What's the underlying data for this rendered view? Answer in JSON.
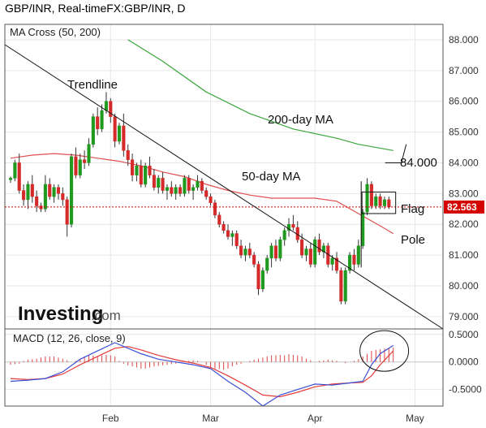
{
  "header": {
    "title": "GBP/INR, Real-timeFX:GBP/INR, D"
  },
  "chart_data": [
    {
      "type": "candlestick",
      "title": "GBP/INR, Real-timeFX:GBP/INR, D",
      "indicator_label": "MA Cross (50, 200)",
      "ylim": [
        78.6,
        88.5
      ],
      "y_ticks": [
        "88.000",
        "87.000",
        "86.000",
        "85.000",
        "84.000",
        "83.000",
        "82.000",
        "81.000",
        "80.000",
        "79.000"
      ],
      "x_ticks": [
        "Feb",
        "Mar",
        "Apr",
        "May"
      ],
      "last_price": "82.563",
      "colors": {
        "up": "#1f9a1f",
        "down": "#d42a2a",
        "ma50": "#e05050",
        "ma200": "#3aa63a",
        "last": "#d40000"
      },
      "candles": [
        [
          83.45,
          83.55,
          83.35,
          83.5
        ],
        [
          83.5,
          84.1,
          83.4,
          84.0
        ],
        [
          84.0,
          84.3,
          83.0,
          83.1
        ],
        [
          83.1,
          83.3,
          82.6,
          82.8
        ],
        [
          82.8,
          83.4,
          82.5,
          83.3
        ],
        [
          83.3,
          83.6,
          82.7,
          82.9
        ],
        [
          82.9,
          83.1,
          82.4,
          82.6
        ],
        [
          82.6,
          82.7,
          82.4,
          82.5
        ],
        [
          82.5,
          83.6,
          82.4,
          83.3
        ],
        [
          83.3,
          83.5,
          82.8,
          82.9
        ],
        [
          82.9,
          83.3,
          82.7,
          83.2
        ],
        [
          83.2,
          83.3,
          82.8,
          83.0
        ],
        [
          83.0,
          83.2,
          82.6,
          82.8
        ],
        [
          82.8,
          82.9,
          81.6,
          82.0
        ],
        [
          82.0,
          84.3,
          81.9,
          84.2
        ],
        [
          84.2,
          84.5,
          83.5,
          83.6
        ],
        [
          83.6,
          84.3,
          83.5,
          84.1
        ],
        [
          84.1,
          84.4,
          83.8,
          84.0
        ],
        [
          84.0,
          84.8,
          83.9,
          84.6
        ],
        [
          84.6,
          85.6,
          84.5,
          85.5
        ],
        [
          85.5,
          85.8,
          84.9,
          85.1
        ],
        [
          85.1,
          85.9,
          85.0,
          85.7
        ],
        [
          85.7,
          86.3,
          85.6,
          86.0
        ],
        [
          86.0,
          86.1,
          85.3,
          85.5
        ],
        [
          85.5,
          85.6,
          84.5,
          84.7
        ],
        [
          84.7,
          85.3,
          84.6,
          85.2
        ],
        [
          85.2,
          85.6,
          84.2,
          84.4
        ],
        [
          84.4,
          84.6,
          83.9,
          84.1
        ],
        [
          84.1,
          84.3,
          83.4,
          83.6
        ],
        [
          83.6,
          84.0,
          83.4,
          83.9
        ],
        [
          83.9,
          84.1,
          83.2,
          83.3
        ],
        [
          83.3,
          84.0,
          83.2,
          83.9
        ],
        [
          83.9,
          84.2,
          83.5,
          83.6
        ],
        [
          83.6,
          83.8,
          83.1,
          83.2
        ],
        [
          83.2,
          83.6,
          83.0,
          83.5
        ],
        [
          83.5,
          83.7,
          83.0,
          83.1
        ],
        [
          83.1,
          83.3,
          82.8,
          83.2
        ],
        [
          83.2,
          83.4,
          82.9,
          83.0
        ],
        [
          83.0,
          83.3,
          82.8,
          83.2
        ],
        [
          83.2,
          83.3,
          82.9,
          83.0
        ],
        [
          83.0,
          83.6,
          82.9,
          83.5
        ],
        [
          83.5,
          83.6,
          83.0,
          83.1
        ],
        [
          83.1,
          83.3,
          82.8,
          83.2
        ],
        [
          83.2,
          83.6,
          83.1,
          83.4
        ],
        [
          83.4,
          83.5,
          83.0,
          83.1
        ],
        [
          83.1,
          83.2,
          82.8,
          82.9
        ],
        [
          82.9,
          83.0,
          82.6,
          82.7
        ],
        [
          82.7,
          82.8,
          82.2,
          82.3
        ],
        [
          82.3,
          82.4,
          81.9,
          82.0
        ],
        [
          82.0,
          82.1,
          81.7,
          81.8
        ],
        [
          81.8,
          82.0,
          81.5,
          81.6
        ],
        [
          81.6,
          81.8,
          81.3,
          81.7
        ],
        [
          81.7,
          81.8,
          81.2,
          81.3
        ],
        [
          81.3,
          81.5,
          80.9,
          81.0
        ],
        [
          81.0,
          81.3,
          80.8,
          81.2
        ],
        [
          81.2,
          81.4,
          80.9,
          81.0
        ],
        [
          81.0,
          81.1,
          80.6,
          80.7
        ],
        [
          80.7,
          80.8,
          79.7,
          79.9
        ],
        [
          79.9,
          80.6,
          79.8,
          80.5
        ],
        [
          80.5,
          81.0,
          80.4,
          80.9
        ],
        [
          80.9,
          81.4,
          80.6,
          81.3
        ],
        [
          81.3,
          81.5,
          80.8,
          80.9
        ],
        [
          80.9,
          81.6,
          80.8,
          81.5
        ],
        [
          81.5,
          81.9,
          81.3,
          81.8
        ],
        [
          81.8,
          82.2,
          81.6,
          82.0
        ],
        [
          82.0,
          82.3,
          81.8,
          81.9
        ],
        [
          81.9,
          82.1,
          81.4,
          81.5
        ],
        [
          81.5,
          81.7,
          80.9,
          81.0
        ],
        [
          81.0,
          81.3,
          80.8,
          81.2
        ],
        [
          81.2,
          81.4,
          80.6,
          80.7
        ],
        [
          80.7,
          81.6,
          80.6,
          81.5
        ],
        [
          81.5,
          81.7,
          81.0,
          81.1
        ],
        [
          81.1,
          81.4,
          80.9,
          81.3
        ],
        [
          81.3,
          81.4,
          80.6,
          80.7
        ],
        [
          80.7,
          81.0,
          80.5,
          80.9
        ],
        [
          80.9,
          81.1,
          80.4,
          80.5
        ],
        [
          80.5,
          80.6,
          79.4,
          79.5
        ],
        [
          79.5,
          80.6,
          79.4,
          80.5
        ],
        [
          80.5,
          81.1,
          80.4,
          81.0
        ],
        [
          81.0,
          81.2,
          80.5,
          80.7
        ],
        [
          80.7,
          81.5,
          80.6,
          81.3
        ],
        [
          81.3,
          82.5,
          81.2,
          82.4
        ],
        [
          82.4,
          83.5,
          82.3,
          83.3
        ],
        [
          83.3,
          83.4,
          82.5,
          82.6
        ],
        [
          82.6,
          83.0,
          82.5,
          82.9
        ],
        [
          82.9,
          83.0,
          82.5,
          82.6
        ],
        [
          82.6,
          82.9,
          82.5,
          82.8
        ],
        [
          82.8,
          82.9,
          82.5,
          82.563
        ]
      ],
      "ma50": [
        [
          0,
          84.15
        ],
        [
          5,
          84.25
        ],
        [
          10,
          84.3
        ],
        [
          15,
          84.25
        ],
        [
          20,
          84.15
        ],
        [
          25,
          84.05
        ],
        [
          30,
          83.9
        ],
        [
          35,
          83.7
        ],
        [
          40,
          83.55
        ],
        [
          45,
          83.3
        ],
        [
          50,
          83.1
        ],
        [
          55,
          82.95
        ],
        [
          60,
          82.85
        ],
        [
          65,
          82.85
        ],
        [
          70,
          82.85
        ],
        [
          75,
          82.75
        ],
        [
          80,
          82.35
        ],
        [
          85,
          81.95
        ],
        [
          88,
          81.7
        ]
      ],
      "ma200": [
        [
          27,
          88.0
        ],
        [
          35,
          87.3
        ],
        [
          45,
          86.3
        ],
        [
          55,
          85.6
        ],
        [
          65,
          85.1
        ],
        [
          75,
          84.8
        ],
        [
          80,
          84.6
        ],
        [
          88,
          84.4
        ]
      ],
      "annotations": {
        "trendline": "Trendline",
        "ma200": "200-day MA",
        "ma50": "50-day MA",
        "target": "84.000",
        "flag": "Flag",
        "pole": "Pole"
      }
    },
    {
      "type": "line",
      "title": "MACD (12, 26, close, 9)",
      "ylim": [
        -0.8,
        0.6
      ],
      "y_ticks": [
        "0.5000",
        "0.0000",
        "-0.5000"
      ],
      "macd": [
        [
          0,
          -0.35
        ],
        [
          4,
          -0.33
        ],
        [
          8,
          -0.3
        ],
        [
          12,
          -0.18
        ],
        [
          16,
          0.05
        ],
        [
          20,
          0.2
        ],
        [
          24,
          0.35
        ],
        [
          27,
          0.25
        ],
        [
          30,
          0.15
        ],
        [
          34,
          0.05
        ],
        [
          38,
          0.0
        ],
        [
          42,
          -0.05
        ],
        [
          46,
          -0.12
        ],
        [
          50,
          -0.35
        ],
        [
          54,
          -0.55
        ],
        [
          58,
          -0.8
        ],
        [
          62,
          -0.6
        ],
        [
          66,
          -0.5
        ],
        [
          70,
          -0.4
        ],
        [
          74,
          -0.42
        ],
        [
          78,
          -0.38
        ],
        [
          81,
          -0.35
        ],
        [
          83,
          -0.05
        ],
        [
          85,
          0.15
        ],
        [
          88,
          0.3
        ]
      ],
      "signal": [
        [
          0,
          -0.3
        ],
        [
          4,
          -0.32
        ],
        [
          8,
          -0.3
        ],
        [
          12,
          -0.22
        ],
        [
          16,
          -0.05
        ],
        [
          20,
          0.1
        ],
        [
          24,
          0.25
        ],
        [
          27,
          0.28
        ],
        [
          30,
          0.22
        ],
        [
          34,
          0.12
        ],
        [
          38,
          0.04
        ],
        [
          42,
          -0.02
        ],
        [
          46,
          -0.1
        ],
        [
          50,
          -0.25
        ],
        [
          54,
          -0.42
        ],
        [
          58,
          -0.6
        ],
        [
          62,
          -0.63
        ],
        [
          66,
          -0.55
        ],
        [
          70,
          -0.45
        ],
        [
          74,
          -0.4
        ],
        [
          78,
          -0.38
        ],
        [
          81,
          -0.37
        ],
        [
          83,
          -0.25
        ],
        [
          85,
          -0.05
        ],
        [
          88,
          0.2
        ]
      ],
      "histogram": [
        -0.05,
        -0.04,
        -0.03,
        0.02,
        0.04,
        0.05,
        0.06,
        0.08,
        0.1,
        0.1,
        0.1,
        0.08,
        0.06,
        0.03,
        0.0,
        0.02,
        0.05,
        0.1,
        0.13,
        0.12,
        0.1,
        0.12,
        0.13,
        0.12,
        0.1,
        0.02,
        -0.03,
        -0.06,
        -0.08,
        -0.1,
        -0.12,
        -0.12,
        -0.1,
        -0.08,
        -0.07,
        -0.06,
        -0.05,
        -0.04,
        -0.03,
        -0.02,
        0.0,
        0.02,
        0.03,
        0.02,
        0.0,
        -0.05,
        -0.1,
        -0.12,
        -0.13,
        -0.14,
        -0.12,
        -0.08,
        -0.05,
        -0.03,
        0.0,
        0.02,
        0.04,
        0.06,
        0.08,
        0.1,
        0.12,
        0.12,
        0.13,
        0.12,
        0.14,
        0.13,
        0.12,
        0.1,
        0.06,
        0.03,
        0.0,
        0.02,
        0.03,
        0.04,
        0.03,
        0.02,
        0.0,
        -0.02,
        0.0,
        0.02,
        0.05,
        0.1,
        0.15,
        0.2,
        0.22,
        0.23,
        0.24,
        0.25,
        0.26
      ],
      "colors": {
        "macd": "#3b4fd6",
        "signal": "#e33b3b",
        "hist": "#d44"
      }
    }
  ],
  "branding": {
    "logo_main": "Investing",
    "logo_suffix": ".com"
  }
}
